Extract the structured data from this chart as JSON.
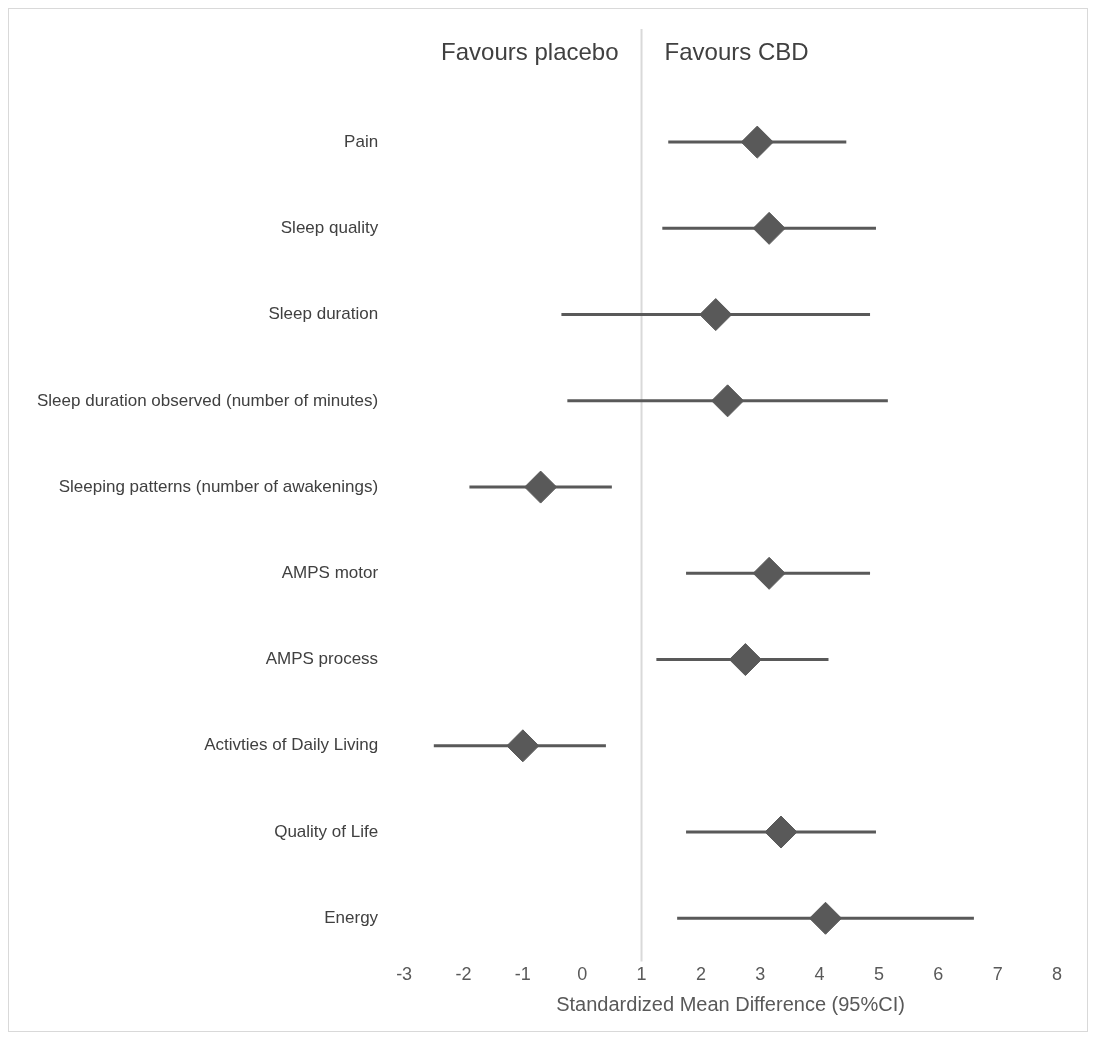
{
  "chart_data": {
    "type": "scatter",
    "orientation": "horizontal",
    "xlabel": "Standardized Mean Difference (95%CI)",
    "annotations": [
      "Favours placebo",
      "Favours CBD"
    ],
    "categories": [
      "Pain",
      "Sleep quality",
      "Sleep duration",
      "Sleep duration observed (number of minutes)",
      "Sleeping patterns (number of awakenings)",
      "AMPS motor",
      "AMPS process",
      "Activties of Daily Living",
      "Quality of Life",
      "Energy"
    ],
    "series": [
      {
        "color": "#595959",
        "values": [
          2.95,
          3.15,
          2.25,
          2.45,
          -0.7,
          3.15,
          2.75,
          -1.0,
          3.35,
          4.1
        ],
        "errors": [
          [
            1.45,
            4.45
          ],
          [
            1.35,
            4.95
          ],
          [
            -0.35,
            4.85
          ],
          [
            -0.25,
            5.15
          ],
          [
            -1.9,
            0.5
          ],
          [
            1.75,
            4.85
          ],
          [
            1.25,
            4.15
          ],
          [
            -2.5,
            0.4
          ],
          [
            1.75,
            4.95
          ],
          [
            1.6,
            6.6
          ]
        ]
      }
    ],
    "xlim": [
      -3,
      8
    ],
    "xticks": [
      -3,
      -2,
      -1,
      0,
      1,
      2,
      3,
      4,
      5,
      6,
      7,
      8
    ],
    "ref_lines": [
      {
        "axis": "x",
        "value": 1,
        "color": "#d9d9d9"
      }
    ],
    "marker": "diamond",
    "grid": false,
    "legend": false
  }
}
